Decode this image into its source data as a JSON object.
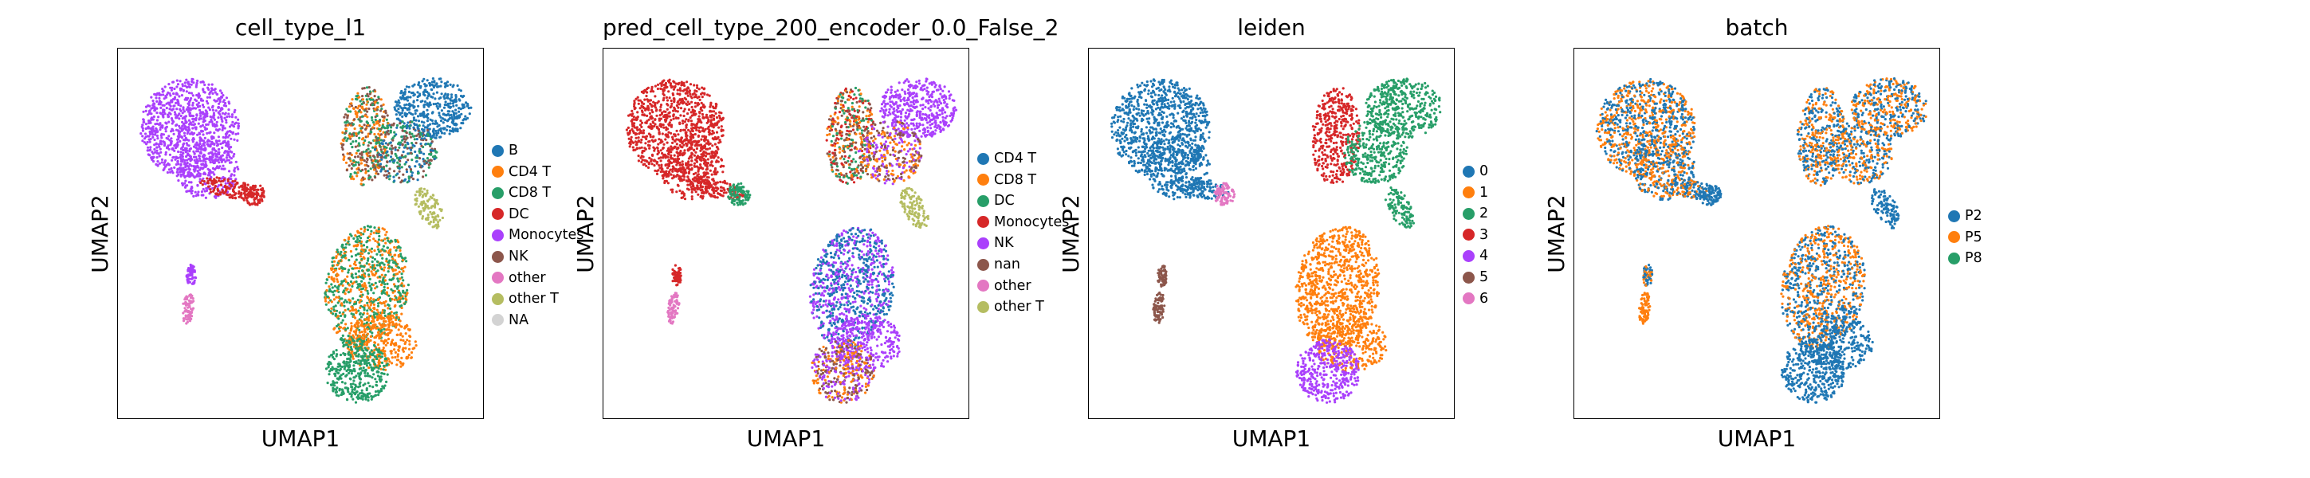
{
  "colors": {
    "blue": "#1f77b4",
    "orange": "#ff7f0e",
    "green": "#279e68",
    "red": "#d62728",
    "purple": "#aa40fc",
    "brown": "#8c564b",
    "pink": "#e377c2",
    "olive": "#b5bd61",
    "gray": "#d3d3d3"
  },
  "chart_data": [
    {
      "type": "scatter",
      "title": "cell_type_l1",
      "xlabel": "UMAP1",
      "ylabel": "UMAP2",
      "grid": false,
      "legend_position": "right",
      "legend": [
        {
          "label": "B",
          "color": "#1f77b4"
        },
        {
          "label": "CD4 T",
          "color": "#ff7f0e"
        },
        {
          "label": "CD8 T",
          "color": "#279e68"
        },
        {
          "label": "DC",
          "color": "#d62728"
        },
        {
          "label": "Monocytes",
          "color": "#aa40fc"
        },
        {
          "label": "NK",
          "color": "#8c564b"
        },
        {
          "label": "other",
          "color": "#e377c2"
        },
        {
          "label": "other T",
          "color": "#b5bd61"
        },
        {
          "label": "NA",
          "color": "#d3d3d3"
        }
      ]
    },
    {
      "type": "scatter",
      "title": "pred_cell_type_200_encoder_0.0_False_2",
      "xlabel": "UMAP1",
      "ylabel": "UMAP2",
      "grid": false,
      "legend_position": "right",
      "legend": [
        {
          "label": "CD4 T",
          "color": "#1f77b4"
        },
        {
          "label": "CD8 T",
          "color": "#ff7f0e"
        },
        {
          "label": "DC",
          "color": "#279e68"
        },
        {
          "label": "Monocytes",
          "color": "#d62728"
        },
        {
          "label": "NK",
          "color": "#aa40fc"
        },
        {
          "label": "nan",
          "color": "#8c564b"
        },
        {
          "label": "other",
          "color": "#e377c2"
        },
        {
          "label": "other T",
          "color": "#b5bd61"
        }
      ]
    },
    {
      "type": "scatter",
      "title": "leiden",
      "xlabel": "UMAP1",
      "ylabel": "UMAP2",
      "grid": false,
      "legend_position": "right",
      "legend": [
        {
          "label": "0",
          "color": "#1f77b4"
        },
        {
          "label": "1",
          "color": "#ff7f0e"
        },
        {
          "label": "2",
          "color": "#279e68"
        },
        {
          "label": "3",
          "color": "#d62728"
        },
        {
          "label": "4",
          "color": "#aa40fc"
        },
        {
          "label": "5",
          "color": "#8c564b"
        },
        {
          "label": "6",
          "color": "#e377c2"
        }
      ]
    },
    {
      "type": "scatter",
      "title": "batch",
      "xlabel": "UMAP1",
      "ylabel": "UMAP2",
      "grid": false,
      "legend_position": "right",
      "legend": [
        {
          "label": "P2",
          "color": "#1f77b4"
        },
        {
          "label": "P5",
          "color": "#ff7f0e"
        },
        {
          "label": "P8",
          "color": "#279e68"
        }
      ]
    }
  ]
}
